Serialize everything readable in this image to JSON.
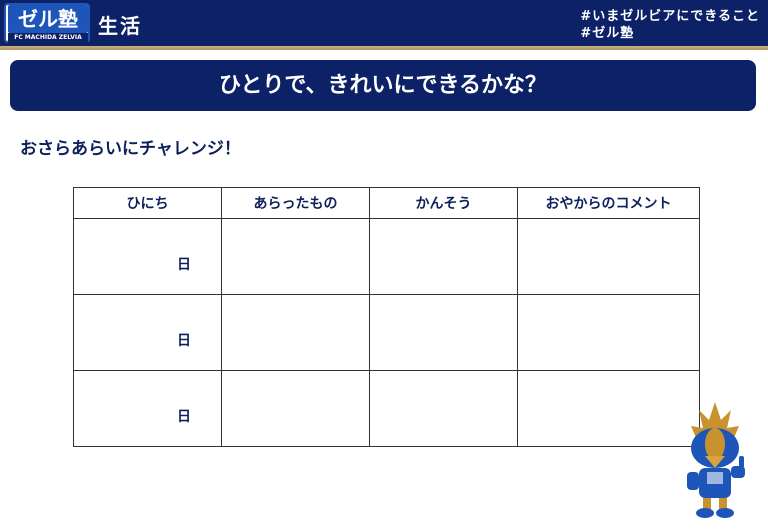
{
  "header": {
    "logo_text": "ゼル塾",
    "logo_sub": "FC MACHIDA ZELVIA",
    "section": "生活",
    "tags": [
      "#いまゼルビアにできること",
      "#ゼル塾"
    ]
  },
  "banner": {
    "title": "ひとりで、きれいにできるかな？"
  },
  "subtitle": "おさらあらいにチャレンジ！",
  "table": {
    "headers": [
      "ひにち",
      "あらったもの",
      "かんそう",
      "おやからのコメント"
    ],
    "rows": [
      {
        "date": "日"
      },
      {
        "date": "日"
      },
      {
        "date": "日"
      }
    ]
  },
  "colors": {
    "navy": "#0d2167",
    "gold": "#c8b27a",
    "blue": "#1d56b8"
  }
}
